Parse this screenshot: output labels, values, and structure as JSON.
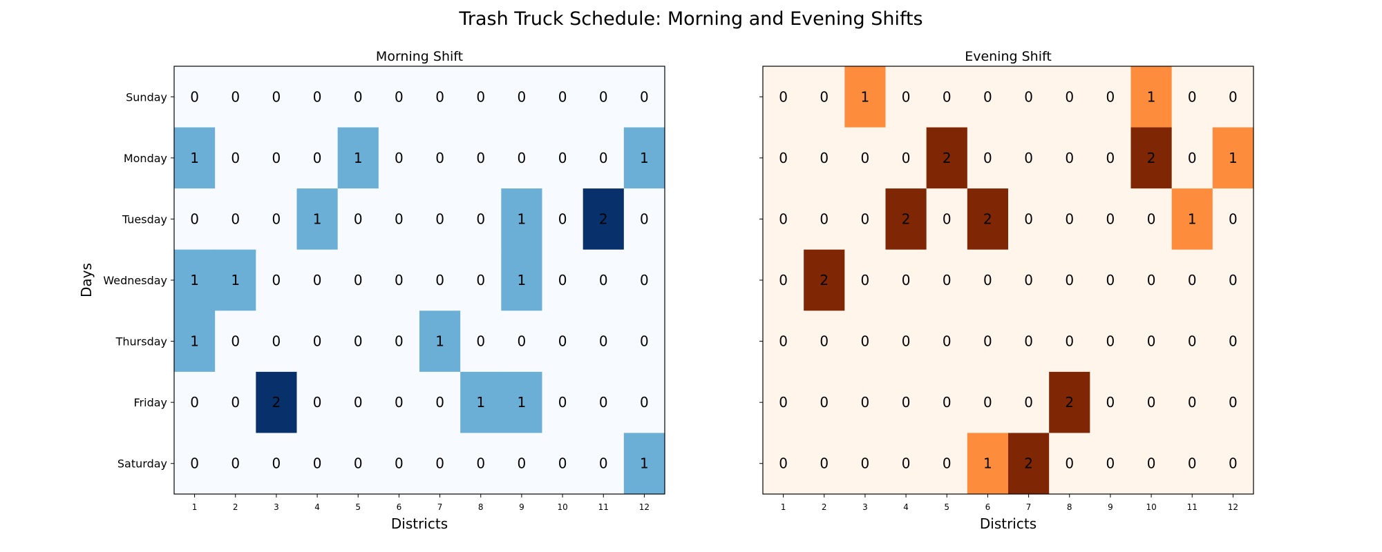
{
  "figure": {
    "title": "Trash Truck Schedule: Morning and Evening Shifts"
  },
  "chart_data": [
    {
      "type": "heatmap",
      "title": "Morning Shift",
      "xlabel": "Districts",
      "ylabel": "Days",
      "x": [
        "1",
        "2",
        "3",
        "4",
        "5",
        "6",
        "7",
        "8",
        "9",
        "10",
        "11",
        "12"
      ],
      "y": [
        "Sunday",
        "Monday",
        "Tuesday",
        "Wednesday",
        "Thursday",
        "Friday",
        "Saturday"
      ],
      "values": [
        [
          0,
          0,
          0,
          0,
          0,
          0,
          0,
          0,
          0,
          0,
          0,
          0
        ],
        [
          1,
          0,
          0,
          0,
          1,
          0,
          0,
          0,
          0,
          0,
          0,
          1
        ],
        [
          0,
          0,
          0,
          1,
          0,
          0,
          0,
          0,
          1,
          0,
          2,
          0
        ],
        [
          1,
          1,
          0,
          0,
          0,
          0,
          0,
          0,
          1,
          0,
          0,
          0
        ],
        [
          1,
          0,
          0,
          0,
          0,
          0,
          1,
          0,
          0,
          0,
          0,
          0
        ],
        [
          0,
          0,
          2,
          0,
          0,
          0,
          0,
          1,
          1,
          0,
          0,
          0
        ],
        [
          0,
          0,
          0,
          0,
          0,
          0,
          0,
          0,
          0,
          0,
          0,
          1
        ]
      ],
      "colormap": "Blues",
      "colors": {
        "0": "#f7fbff",
        "1": "#6baed6",
        "2": "#08306b"
      },
      "annotated": true,
      "show_ytick_labels": true
    },
    {
      "type": "heatmap",
      "title": "Evening Shift",
      "xlabel": "Districts",
      "ylabel": "",
      "x": [
        "1",
        "2",
        "3",
        "4",
        "5",
        "6",
        "7",
        "8",
        "9",
        "10",
        "11",
        "12"
      ],
      "y": [
        "Sunday",
        "Monday",
        "Tuesday",
        "Wednesday",
        "Thursday",
        "Friday",
        "Saturday"
      ],
      "values": [
        [
          0,
          0,
          1,
          0,
          0,
          0,
          0,
          0,
          0,
          1,
          0,
          0
        ],
        [
          0,
          0,
          0,
          0,
          2,
          0,
          0,
          0,
          0,
          2,
          0,
          1
        ],
        [
          0,
          0,
          0,
          2,
          0,
          2,
          0,
          0,
          0,
          0,
          1,
          0
        ],
        [
          0,
          2,
          0,
          0,
          0,
          0,
          0,
          0,
          0,
          0,
          0,
          0
        ],
        [
          0,
          0,
          0,
          0,
          0,
          0,
          0,
          0,
          0,
          0,
          0,
          0
        ],
        [
          0,
          0,
          0,
          0,
          0,
          0,
          0,
          2,
          0,
          0,
          0,
          0
        ],
        [
          0,
          0,
          0,
          0,
          0,
          1,
          2,
          0,
          0,
          0,
          0,
          0
        ]
      ],
      "colormap": "Oranges",
      "colors": {
        "0": "#fff5eb",
        "1": "#fd8d3c",
        "2": "#7f2704"
      },
      "annotated": true,
      "show_ytick_labels": false
    }
  ]
}
